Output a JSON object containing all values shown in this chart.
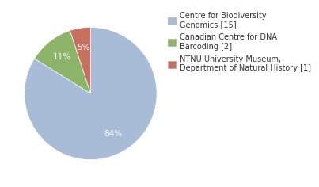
{
  "labels": [
    "Centre for Biodiversity\nGenomics [15]",
    "Canadian Centre for DNA\nBarcoding [2]",
    "NTNU University Museum,\nDepartment of Natural History [1]"
  ],
  "values": [
    83,
    11,
    5
  ],
  "colors": [
    "#a8bcd8",
    "#8db56a",
    "#c87060"
  ],
  "startangle": 90,
  "background_color": "#ffffff",
  "text_color": "#333333",
  "fontsize": 7.5,
  "legend_fontsize": 7
}
